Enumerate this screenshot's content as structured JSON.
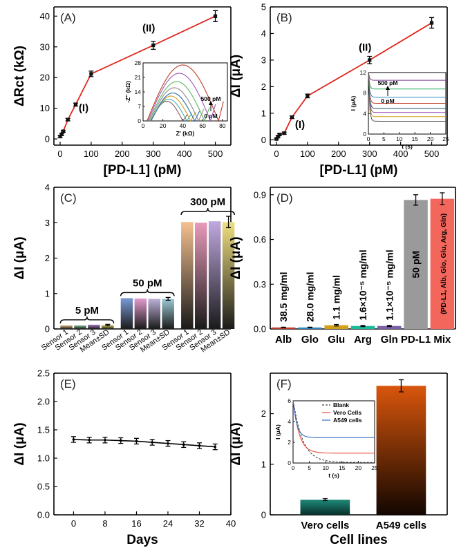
{
  "chart_data": [
    {
      "panel": "(A)",
      "type": "line",
      "x": [
        0,
        5,
        10,
        25,
        50,
        100,
        300,
        500
      ],
      "y": [
        0.8,
        1.5,
        2.5,
        6.3,
        11.2,
        21.2,
        30.5,
        40.0
      ],
      "err": [
        0.3,
        0.3,
        0.3,
        0.4,
        0.5,
        0.9,
        1.3,
        1.8
      ],
      "xlabel": "[PD-L1] (pM)",
      "ylabel": "ΔRct (kΩ)",
      "xlim": [
        -20,
        550
      ],
      "ylim": [
        -2,
        43
      ],
      "xticks": [
        0,
        100,
        200,
        300,
        400,
        500
      ],
      "yticks": [
        0,
        10,
        20,
        30,
        40
      ],
      "annotations": [
        {
          "text": "(I)",
          "x": 60,
          "y": 9
        },
        {
          "text": "(II)",
          "x": 265,
          "y": 35
        }
      ],
      "inset": {
        "xlabel": "Z' (kΩ)",
        "ylabel": "-Z'' (kΩ)",
        "xlim": [
          0,
          85
        ],
        "ylim": [
          0,
          28
        ],
        "xticks": [
          0,
          20,
          40,
          60,
          80
        ],
        "yticks": [
          0,
          7,
          14,
          21,
          28
        ],
        "arrow_top": "500 pM",
        "arrow_bottom": "0 pM",
        "colors": [
          "#8b5a5a",
          "#3fb3b0",
          "#d4a020",
          "#2a6ab0",
          "#8a8a8a",
          "#5cb85c",
          "#9b59b6",
          "#c0392b"
        ]
      }
    },
    {
      "panel": "(B)",
      "type": "line",
      "x": [
        0,
        5,
        10,
        25,
        50,
        100,
        300,
        500
      ],
      "y": [
        0.03,
        0.12,
        0.2,
        0.25,
        0.85,
        1.65,
        3.0,
        4.4
      ],
      "err": [
        0.03,
        0.03,
        0.03,
        0.04,
        0.05,
        0.07,
        0.14,
        0.2
      ],
      "xlabel": "[PD-L1] (pM)",
      "ylabel": "ΔI (μA)",
      "xlim": [
        -20,
        550
      ],
      "ylim": [
        -0.2,
        5
      ],
      "xticks": [
        0,
        100,
        200,
        300,
        400,
        500
      ],
      "yticks": [
        0,
        1,
        2,
        3,
        4,
        5
      ],
      "annotations": [
        {
          "text": "(I)",
          "x": 60,
          "y": 0.45
        },
        {
          "text": "(II)",
          "x": 265,
          "y": 3.35
        }
      ],
      "inset": {
        "xlabel": "t (s)",
        "ylabel": "I (μA)",
        "xlim": [
          0,
          25
        ],
        "ylim": [
          0,
          12
        ],
        "xticks": [
          0,
          5,
          10,
          15,
          20,
          25
        ],
        "yticks": [
          0,
          4,
          8,
          12
        ],
        "arrow_top": "500 pM",
        "arrow_bottom": "0 pM",
        "colors": [
          "#7d3c98",
          "#27ae60",
          "#2e86c1",
          "#c0392b",
          "#1a5276",
          "#8e44ad",
          "#d4a017",
          "#555555"
        ]
      }
    },
    {
      "panel": "(C)",
      "type": "bar",
      "categories": [
        "Sensor 1",
        "Sensor 2",
        "Sensor 3",
        "Mean±SD",
        "Sensor 1",
        "Sensor 2",
        "Sensor 3",
        "Mean±SD",
        "Sensor 1",
        "Sensor 2",
        "Sensor 3",
        "Mean±SD"
      ],
      "values": [
        0.1,
        0.1,
        0.12,
        0.11,
        0.87,
        0.86,
        0.85,
        0.85,
        3.02,
        3.0,
        3.04,
        3.02
      ],
      "err": [
        0,
        0,
        0,
        0.02,
        0,
        0,
        0,
        0.04,
        0,
        0,
        0,
        0.16
      ],
      "group_labels": [
        "5 pM",
        "50 pM",
        "300 pM"
      ],
      "ylabel": "ΔI (μA)",
      "ylim": [
        0,
        4
      ],
      "yticks": [
        0,
        1,
        2,
        3,
        4
      ],
      "colors": [
        "#e0b07a",
        "#7dbd8a",
        "#a878c0",
        "#d8d05a",
        "#7a9ad8",
        "#e49ad0",
        "#bcb0d8",
        "#9ccbd6",
        "#f5c090",
        "#e89ab8",
        "#c0a8e0",
        "#f0e080"
      ]
    },
    {
      "panel": "(D)",
      "type": "bar",
      "categories": [
        "Alb",
        "Glo",
        "Glu",
        "Arg",
        "Gln",
        "PD-L1",
        "Mix"
      ],
      "values": [
        0.01,
        0.01,
        0.025,
        0.02,
        0.02,
        0.865,
        0.873
      ],
      "err": [
        0.002,
        0.002,
        0.005,
        0.004,
        0.004,
        0.035,
        0.04
      ],
      "bar_labels": [
        "38.5 mg/ml",
        "28.0 mg/ml",
        "1.1 mg/ml",
        "1.6×10⁻⁵ mg/ml",
        "1.1×10⁻⁵ mg/ml",
        "50 pM",
        "(PD-L1, Alb, Glo, Glu, Arg, Gln)"
      ],
      "ylabel": "ΔI (μA)",
      "ylim": [
        0,
        0.95
      ],
      "yticks": [
        0,
        0.3,
        0.6,
        0.9
      ],
      "colors": [
        "#c0392b",
        "#2e86c1",
        "#d4a017",
        "#1abc9c",
        "#7d5fa8",
        "#9a9a9a",
        "#f2665c"
      ]
    },
    {
      "panel": "(E)",
      "type": "line",
      "x": [
        0,
        4,
        8,
        12,
        16,
        20,
        24,
        28,
        32,
        36
      ],
      "y": [
        1.33,
        1.32,
        1.32,
        1.31,
        1.3,
        1.28,
        1.26,
        1.24,
        1.22,
        1.2
      ],
      "err": [
        0.05,
        0.05,
        0.05,
        0.05,
        0.05,
        0.05,
        0.05,
        0.05,
        0.05,
        0.05
      ],
      "xlabel": "Days",
      "ylabel": "ΔI (μA)",
      "xlim": [
        -5,
        40
      ],
      "ylim": [
        0,
        2.5
      ],
      "xticks": [
        0,
        8,
        16,
        24,
        32,
        40
      ],
      "yticks": [
        0.0,
        0.5,
        1.0,
        1.5,
        2.0,
        2.5
      ]
    },
    {
      "panel": "(F)",
      "type": "bar",
      "categories": [
        "Vero cells",
        "A549 cells"
      ],
      "values": [
        0.3,
        2.55
      ],
      "err": [
        0.02,
        0.12
      ],
      "xlabel": "Cell lines",
      "ylabel": "ΔI (μA)",
      "ylim": [
        0,
        2.8
      ],
      "yticks": [
        0,
        1,
        2
      ],
      "inset": {
        "xlabel": "t (s)",
        "ylabel": "I (μA)",
        "xlim": [
          0,
          25
        ],
        "ylim": [
          0,
          6
        ],
        "xticks": [
          0,
          5,
          10,
          15,
          20,
          25
        ],
        "yticks": [
          0,
          2,
          4,
          6
        ],
        "legend": [
          "Blank",
          "Vero Cells",
          "A549 cells"
        ],
        "colors": [
          "#444444",
          "#e74c3c",
          "#2e6fc2"
        ]
      }
    }
  ]
}
